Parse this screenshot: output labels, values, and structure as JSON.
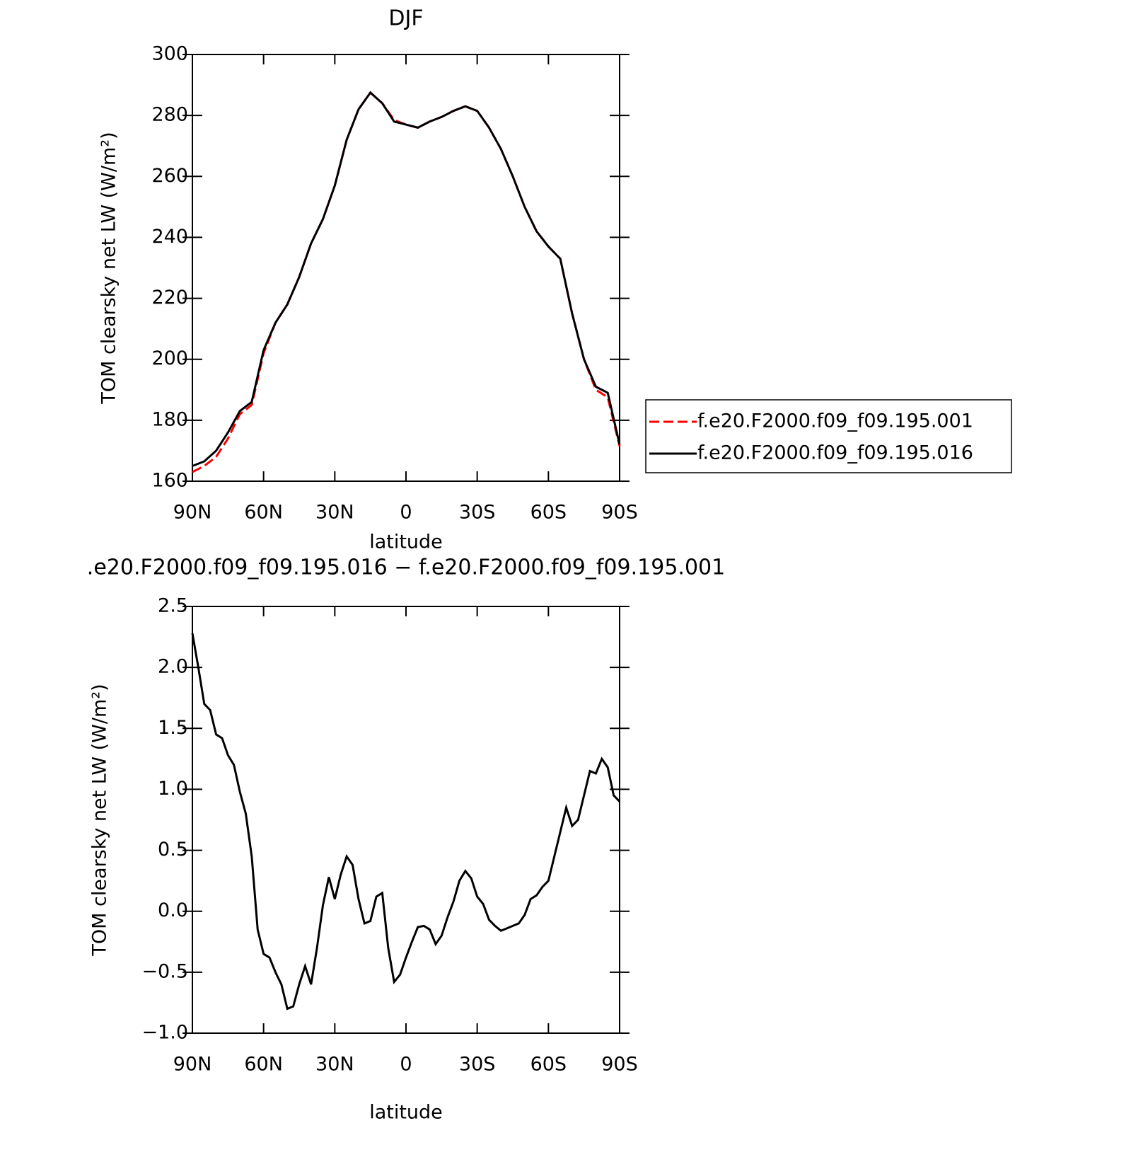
{
  "chart_data": [
    {
      "type": "line",
      "title": "DJF",
      "xlabel": "latitude",
      "ylabel": "TOM clearsky net LW (W/m²)",
      "xlim": [
        90,
        -90
      ],
      "xticks": [
        {
          "value": 90,
          "label": "90N"
        },
        {
          "value": 60,
          "label": "60N"
        },
        {
          "value": 30,
          "label": "30N"
        },
        0,
        {
          "value": -30,
          "label": "30S"
        },
        {
          "value": -60,
          "label": "60S"
        },
        {
          "value": -90,
          "label": "90S"
        }
      ],
      "ylim": [
        160,
        300
      ],
      "yticks": [
        160,
        180,
        200,
        220,
        240,
        260,
        280,
        300
      ],
      "legend": "right",
      "x": [
        90,
        85,
        80,
        75,
        70,
        65,
        60,
        55,
        50,
        45,
        40,
        35,
        30,
        25,
        20,
        15,
        10,
        5,
        0,
        -5,
        -10,
        -15,
        -20,
        -25,
        -30,
        -35,
        -40,
        -45,
        -50,
        -55,
        -60,
        -65,
        -70,
        -75,
        -80,
        -85,
        -90
      ],
      "series": [
        {
          "name": "f.e20.F2000.f09_f09.195.001",
          "color": "#ff0000",
          "linestyle": "dashed",
          "values": [
            163,
            165,
            168,
            174,
            182,
            185,
            202,
            212,
            218,
            227,
            238,
            246,
            257,
            272,
            282,
            287.5,
            284,
            278.5,
            277,
            276,
            278,
            279.5,
            281.5,
            283,
            281.5,
            276,
            269,
            260,
            250,
            242,
            237,
            233,
            215,
            200,
            190,
            187.5,
            171.5
          ]
        },
        {
          "name": "f.e20.F2000.f09_f09.195.016",
          "color": "#000000",
          "linestyle": "solid",
          "values": [
            165,
            166.5,
            170,
            176,
            183,
            186,
            203,
            212,
            218,
            227,
            238,
            246,
            257,
            272,
            282,
            287.5,
            284,
            278,
            277,
            276,
            278,
            279.5,
            281.5,
            283,
            281.5,
            276,
            269,
            260,
            250,
            242,
            237,
            233,
            215,
            200,
            191,
            189,
            172
          ]
        }
      ]
    },
    {
      "type": "line",
      "title": ".e20.F2000.f09_f09.195.016 − f.e20.F2000.f09_f09.195.001",
      "xlabel": "latitude",
      "ylabel": "TOM clearsky net LW (W/m²)",
      "xlim": [
        90,
        -90
      ],
      "xticks": [
        {
          "value": 90,
          "label": "90N"
        },
        {
          "value": 60,
          "label": "60N"
        },
        {
          "value": 30,
          "label": "30N"
        },
        0,
        {
          "value": -30,
          "label": "30S"
        },
        {
          "value": -60,
          "label": "60S"
        },
        {
          "value": -90,
          "label": "90S"
        }
      ],
      "ylim": [
        -1.0,
        2.5
      ],
      "yticks": [
        {
          "value": -1.0,
          "label": "−1.0"
        },
        {
          "value": -0.5,
          "label": "−0.5"
        },
        {
          "value": 0.0,
          "label": "0.0"
        },
        0.5,
        {
          "value": 1.0,
          "label": "1.0"
        },
        1.5,
        {
          "value": 2.0,
          "label": "2.0"
        },
        2.5
      ],
      "x": [
        90,
        87.5,
        85,
        82.5,
        80,
        77.5,
        75,
        72.5,
        70,
        67.5,
        65,
        62.5,
        60,
        57.5,
        55,
        52.5,
        50,
        47.5,
        45,
        42.5,
        40,
        37.5,
        35,
        32.5,
        30,
        27.5,
        25,
        22.5,
        20,
        17.5,
        15,
        12.5,
        10,
        7.5,
        5,
        2.5,
        0,
        -2.5,
        -5,
        -7.5,
        -10,
        -12.5,
        -15,
        -17.5,
        -20,
        -22.5,
        -25,
        -27.5,
        -30,
        -32.5,
        -35,
        -37.5,
        -40,
        -42.5,
        -45,
        -47.5,
        -50,
        -52.5,
        -55,
        -57.5,
        -60,
        -62.5,
        -65,
        -67.5,
        -70,
        -72.5,
        -75,
        -77.5,
        -80,
        -82.5,
        -85,
        -87.5,
        -90
      ],
      "series": [
        {
          "color": "#000000",
          "linestyle": "solid",
          "values": [
            2.28,
            2.0,
            1.7,
            1.65,
            1.45,
            1.42,
            1.28,
            1.2,
            0.98,
            0.8,
            0.45,
            -0.15,
            -0.35,
            -0.38,
            -0.5,
            -0.6,
            -0.8,
            -0.78,
            -0.6,
            -0.45,
            -0.6,
            -0.3,
            0.05,
            0.28,
            0.1,
            0.3,
            0.45,
            0.38,
            0.1,
            -0.1,
            -0.08,
            0.12,
            0.15,
            -0.3,
            -0.58,
            -0.52,
            -0.38,
            -0.25,
            -0.13,
            -0.12,
            -0.15,
            -0.27,
            -0.2,
            -0.05,
            0.08,
            0.25,
            0.33,
            0.27,
            0.12,
            0.06,
            -0.07,
            -0.12,
            -0.16,
            -0.14,
            -0.12,
            -0.1,
            -0.03,
            0.1,
            0.13,
            0.2,
            0.25,
            0.45,
            0.65,
            0.85,
            0.7,
            0.75,
            0.95,
            1.15,
            1.13,
            1.25,
            1.18,
            0.95,
            0.9
          ]
        }
      ]
    }
  ]
}
